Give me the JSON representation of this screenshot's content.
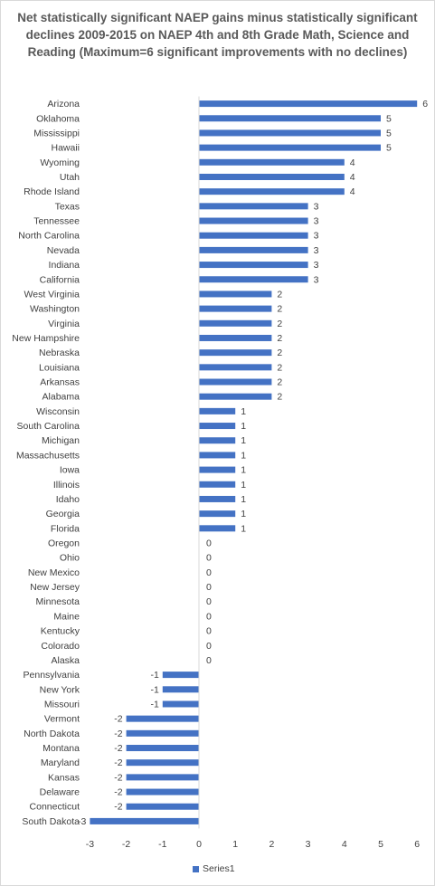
{
  "chart_data": {
    "type": "bar",
    "orientation": "horizontal",
    "title": "Net statistically significant NAEP gains minus statistically significant declines 2009-2015 on NAEP 4th and 8th Grade Math, Science and Reading (Maximum=6 significant improvements with no declines)",
    "categories": [
      "Arizona",
      "Oklahoma",
      "Mississippi",
      "Hawaii",
      "Wyoming",
      "Utah",
      "Rhode Island",
      "Texas",
      "Tennessee",
      "North Carolina",
      "Nevada",
      "Indiana",
      "California",
      "West Virginia",
      "Washington",
      "Virginia",
      "New Hampshire",
      "Nebraska",
      "Louisiana",
      "Arkansas",
      "Alabama",
      "Wisconsin",
      "South Carolina",
      "Michigan",
      "Massachusetts",
      "Iowa",
      "Illinois",
      "Idaho",
      "Georgia",
      "Florida",
      "Oregon",
      "Ohio",
      "New Mexico",
      "New Jersey",
      "Minnesota",
      "Maine",
      "Kentucky",
      "Colorado",
      "Alaska",
      "Pennsylvania",
      "New York",
      "Missouri",
      "Vermont",
      "North Dakota",
      "Montana",
      "Maryland",
      "Kansas",
      "Delaware",
      "Connecticut",
      "South Dakota"
    ],
    "series": [
      {
        "name": "Series1",
        "color": "#4472c4",
        "values": [
          6,
          5,
          5,
          5,
          4,
          4,
          4,
          3,
          3,
          3,
          3,
          3,
          3,
          2,
          2,
          2,
          2,
          2,
          2,
          2,
          2,
          1,
          1,
          1,
          1,
          1,
          1,
          1,
          1,
          1,
          0,
          0,
          0,
          0,
          0,
          0,
          0,
          0,
          0,
          -1,
          -1,
          -1,
          -2,
          -2,
          -2,
          -2,
          -2,
          -2,
          -2,
          -3
        ]
      }
    ],
    "xlim": [
      -3,
      6
    ],
    "xticks": [
      "-3",
      "-2",
      "-1",
      "0",
      "1",
      "2",
      "3",
      "4",
      "5",
      "6"
    ],
    "data_labels": true,
    "grid": false,
    "legend_position": "bottom"
  }
}
